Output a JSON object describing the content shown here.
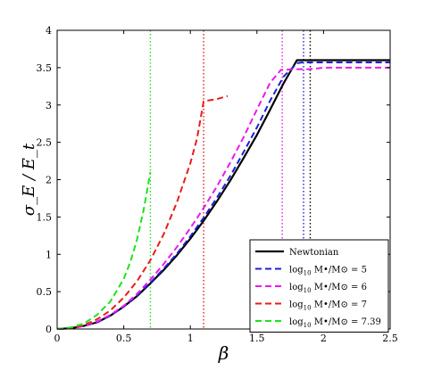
{
  "chart_data": {
    "type": "line",
    "xlabel": "β",
    "ylabel": "σ_E / E_t",
    "xlim": [
      0,
      2.5
    ],
    "ylim": [
      0,
      4
    ],
    "xticks": [
      "0",
      "0.5",
      "1",
      "1.5",
      "2",
      "2.5"
    ],
    "xtick_values": [
      0,
      0.5,
      1,
      1.5,
      2,
      2.5
    ],
    "yticks": [
      "0",
      "0.5",
      "1",
      "1.5",
      "2",
      "2.5",
      "3",
      "3.5",
      "4"
    ],
    "ytick_values": [
      0,
      0.5,
      1,
      1.5,
      2,
      2.5,
      3,
      3.5,
      4
    ],
    "grid": false,
    "legend_position": "bottom-right",
    "series": [
      {
        "name": "Newtonian",
        "label_parts": [
          "Newtonian",
          "",
          ""
        ],
        "color": "#000000",
        "dash": "solid",
        "x": [
          0,
          0.1,
          0.2,
          0.3,
          0.4,
          0.5,
          0.6,
          0.7,
          0.8,
          0.9,
          1.0,
          1.1,
          1.2,
          1.3,
          1.4,
          1.5,
          1.6,
          1.7,
          1.8,
          1.87,
          2.0,
          2.5
        ],
        "y": [
          0,
          0.01,
          0.04,
          0.09,
          0.18,
          0.3,
          0.44,
          0.61,
          0.79,
          0.99,
          1.21,
          1.45,
          1.71,
          1.99,
          2.29,
          2.6,
          2.94,
          3.29,
          3.6,
          3.6,
          3.6,
          3.6
        ]
      },
      {
        "name": "log10 M•/M⊙ = 5",
        "label_parts": [
          "log",
          "10",
          " M•/M⊙ = 5"
        ],
        "color": "#1f1fd6",
        "dash": "dashed",
        "x": [
          0,
          0.1,
          0.2,
          0.3,
          0.4,
          0.5,
          0.6,
          0.7,
          0.8,
          0.9,
          1.0,
          1.1,
          1.2,
          1.3,
          1.4,
          1.5,
          1.6,
          1.7,
          1.8,
          1.84,
          2.0,
          2.5
        ],
        "y": [
          0,
          0.01,
          0.04,
          0.09,
          0.18,
          0.3,
          0.45,
          0.62,
          0.81,
          1.01,
          1.24,
          1.49,
          1.76,
          2.05,
          2.37,
          2.7,
          3.06,
          3.38,
          3.56,
          3.57,
          3.57,
          3.57
        ]
      },
      {
        "name": "log10 M•/M⊙ = 6",
        "label_parts": [
          "log",
          "10",
          " M•/M⊙ = 6"
        ],
        "color": "#ea1aea",
        "dash": "dashed",
        "x": [
          0,
          0.1,
          0.2,
          0.3,
          0.4,
          0.5,
          0.6,
          0.7,
          0.8,
          0.9,
          1.0,
          1.1,
          1.2,
          1.3,
          1.4,
          1.5,
          1.6,
          1.68,
          1.8,
          1.9,
          2.0,
          2.5
        ],
        "y": [
          0,
          0.01,
          0.04,
          0.1,
          0.19,
          0.31,
          0.47,
          0.66,
          0.87,
          1.1,
          1.35,
          1.62,
          1.91,
          2.23,
          2.57,
          2.94,
          3.3,
          3.47,
          3.48,
          3.48,
          3.5,
          3.5
        ]
      },
      {
        "name": "log10 M•/M⊙ = 7",
        "label_parts": [
          "log",
          "10",
          " M•/M⊙ = 7"
        ],
        "color": "#e81c1c",
        "dash": "dashed",
        "x": [
          0,
          0.1,
          0.2,
          0.3,
          0.4,
          0.5,
          0.6,
          0.7,
          0.8,
          0.9,
          1.0,
          1.05,
          1.1,
          1.2,
          1.28
        ],
        "y": [
          0,
          0.01,
          0.05,
          0.13,
          0.25,
          0.42,
          0.64,
          0.92,
          1.27,
          1.7,
          2.22,
          2.55,
          3.05,
          3.08,
          3.12
        ]
      },
      {
        "name": "log10 M•/M⊙ = 7.39",
        "label_parts": [
          "log",
          "10",
          " M•/M⊙ = 7.39"
        ],
        "color": "#1de21d",
        "dash": "dashed",
        "x": [
          0,
          0.1,
          0.2,
          0.3,
          0.4,
          0.5,
          0.55,
          0.6,
          0.65,
          0.7
        ],
        "y": [
          0,
          0.02,
          0.07,
          0.19,
          0.37,
          0.67,
          0.9,
          1.2,
          1.6,
          2.1
        ]
      }
    ],
    "vlines": [
      {
        "x": 0.7,
        "color": "#1de21d"
      },
      {
        "x": 1.1,
        "color": "#e81c1c"
      },
      {
        "x": 1.69,
        "color": "#ea1aea"
      },
      {
        "x": 1.85,
        "color": "#1f1fd6"
      },
      {
        "x": 1.9,
        "color": "#000000"
      }
    ]
  }
}
